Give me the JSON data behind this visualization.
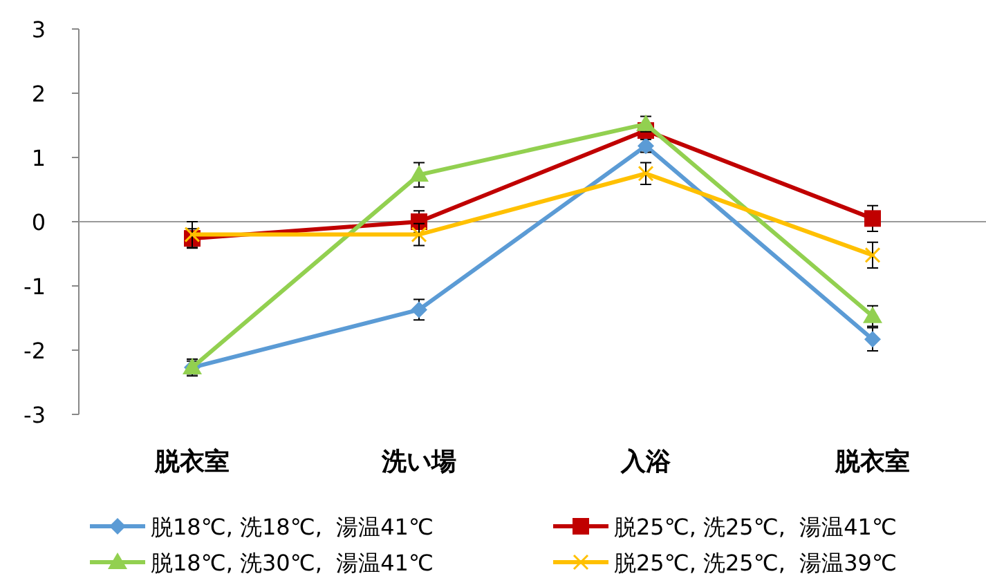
{
  "chart_data": {
    "type": "line",
    "categories": [
      "脱衣室",
      "洗い場",
      "入浴",
      "脱衣室"
    ],
    "ylim": [
      -3,
      3
    ],
    "yticks": [
      -3,
      -2,
      -1,
      0,
      1,
      2,
      3
    ],
    "legend": "bottom",
    "line_style": "solid",
    "series": [
      {
        "name": "脱18℃, 洗18℃,  湯温41℃",
        "color": "#5b9bd5",
        "marker": "diamond",
        "values": [
          -2.27,
          -1.37,
          1.18,
          -1.83
        ],
        "errors": [
          0.1,
          0.16,
          0.1,
          0.18
        ]
      },
      {
        "name": "脱25℃, 洗25℃,  湯温41℃",
        "color": "#c00000",
        "marker": "square",
        "values": [
          -0.26,
          0.0,
          1.42,
          0.05
        ],
        "errors": [
          0.15,
          0.17,
          null,
          0.2
        ]
      },
      {
        "name": "脱18℃, 洗30℃,  湯温41℃",
        "color": "#92d050",
        "marker": "triangle",
        "values": [
          -2.27,
          0.73,
          1.52,
          -1.47
        ],
        "errors": [
          0.13,
          0.19,
          0.12,
          0.16
        ]
      },
      {
        "name": "脱25℃, 洗25℃,  湯温39℃",
        "color": "#ffc000",
        "marker": "cross",
        "values": [
          -0.2,
          -0.2,
          0.75,
          -0.52
        ],
        "errors": [
          0.2,
          0.17,
          0.17,
          0.2
        ]
      }
    ]
  }
}
